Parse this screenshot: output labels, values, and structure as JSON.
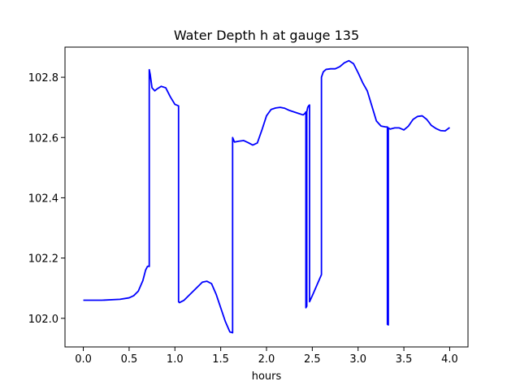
{
  "chart_data": {
    "type": "line",
    "title": "Water Depth h at gauge 135",
    "xlabel": "hours",
    "ylabel": "",
    "xlim": [
      -0.2,
      4.2
    ],
    "ylim": [
      101.905,
      102.9
    ],
    "xticks": [
      0.0,
      0.5,
      1.0,
      1.5,
      2.0,
      2.5,
      3.0,
      3.5,
      4.0
    ],
    "xtick_labels": [
      "0.0",
      "0.5",
      "1.0",
      "1.5",
      "2.0",
      "2.5",
      "3.0",
      "3.5",
      "4.0"
    ],
    "yticks": [
      102.0,
      102.2,
      102.4,
      102.6,
      102.8
    ],
    "ytick_labels": [
      "102.0",
      "102.2",
      "102.4",
      "102.6",
      "102.8"
    ],
    "grid": false,
    "color": "#0000ff",
    "series": [
      {
        "x": [
          0.0,
          0.2,
          0.4,
          0.5,
          0.55,
          0.6,
          0.65,
          0.68,
          0.7,
          0.71,
          0.72,
          0.72,
          0.73,
          0.75,
          0.78,
          0.8,
          0.85,
          0.9,
          0.95,
          1.0,
          1.04,
          1.04,
          1.05,
          1.1,
          1.2,
          1.3,
          1.35,
          1.4,
          1.45,
          1.5,
          1.55,
          1.6,
          1.63,
          1.63,
          1.65,
          1.7,
          1.75,
          1.8,
          1.85,
          1.9,
          1.95,
          2.0,
          2.05,
          2.1,
          2.15,
          2.2,
          2.25,
          2.3,
          2.35,
          2.4,
          2.42,
          2.43,
          2.43,
          2.44,
          2.44,
          2.45,
          2.46,
          2.47,
          2.47,
          2.5,
          2.55,
          2.6,
          2.6,
          2.62,
          2.65,
          2.7,
          2.75,
          2.8,
          2.85,
          2.9,
          2.95,
          3.0,
          3.05,
          3.1,
          3.15,
          3.2,
          3.25,
          3.3,
          3.32,
          3.32,
          3.33,
          3.33,
          3.35,
          3.4,
          3.45,
          3.5,
          3.55,
          3.6,
          3.65,
          3.7,
          3.75,
          3.8,
          3.85,
          3.9,
          3.95,
          4.0
        ],
        "y": [
          102.06,
          102.06,
          102.063,
          102.068,
          102.075,
          102.09,
          102.125,
          102.16,
          102.172,
          102.173,
          102.172,
          102.825,
          102.81,
          102.765,
          102.755,
          102.76,
          102.77,
          102.765,
          102.735,
          102.71,
          102.705,
          102.055,
          102.052,
          102.06,
          102.09,
          102.12,
          102.123,
          102.115,
          102.08,
          102.035,
          101.99,
          101.955,
          101.952,
          102.6,
          102.585,
          102.588,
          102.59,
          102.583,
          102.575,
          102.582,
          102.625,
          102.672,
          102.693,
          102.698,
          102.7,
          102.697,
          102.69,
          102.685,
          102.68,
          102.675,
          102.68,
          102.685,
          102.035,
          102.04,
          102.685,
          102.7,
          102.705,
          102.708,
          102.055,
          102.075,
          102.11,
          102.145,
          102.8,
          102.818,
          102.826,
          102.828,
          102.828,
          102.835,
          102.848,
          102.855,
          102.845,
          102.815,
          102.782,
          102.755,
          102.705,
          102.655,
          102.638,
          102.635,
          102.635,
          101.98,
          101.978,
          102.632,
          102.628,
          102.632,
          102.632,
          102.625,
          102.638,
          102.66,
          102.67,
          102.672,
          102.66,
          102.64,
          102.63,
          102.623,
          102.622,
          102.633
        ]
      }
    ]
  }
}
